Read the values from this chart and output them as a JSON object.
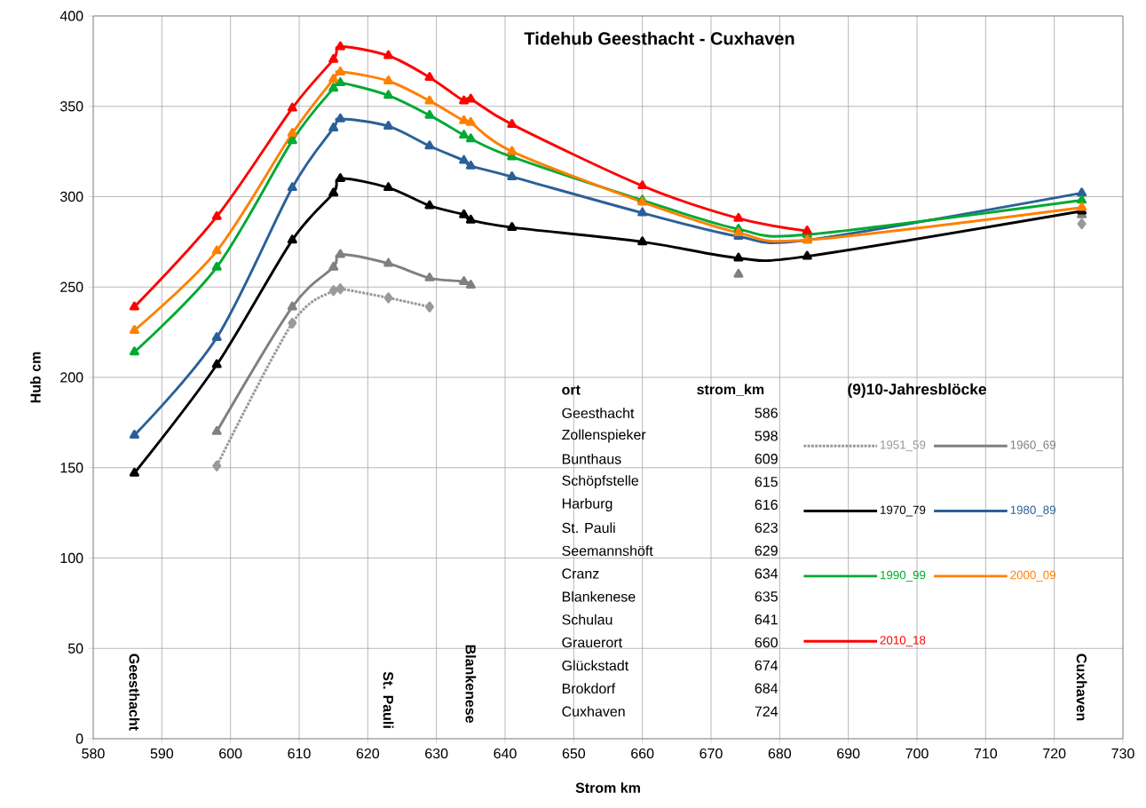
{
  "chart_data": {
    "type": "line",
    "title": "Tidehub Geesthacht - Cuxhaven",
    "xlabel": "Strom km",
    "ylabel": "Hub cm",
    "legend_title": "(9)10-Jahresblöcke",
    "x": [
      586,
      598,
      609,
      615,
      616,
      623,
      629,
      634,
      635,
      641,
      660,
      674,
      684,
      724
    ],
    "series": [
      {
        "name": "1951_59",
        "color": "#999999",
        "marker": "diamond",
        "line_style": "dotted",
        "values": [
          null,
          151,
          230,
          248,
          249,
          244,
          239,
          null,
          null,
          null,
          null,
          null,
          null,
          285
        ]
      },
      {
        "name": "1960_69",
        "color": "#808080",
        "marker": "triangle",
        "line_style": "solid",
        "values": [
          null,
          170,
          239,
          261,
          268,
          263,
          255,
          253,
          251,
          null,
          null,
          257,
          null,
          290
        ]
      },
      {
        "name": "1970_79",
        "color": "#000000",
        "marker": "triangle",
        "line_style": "solid",
        "values": [
          147,
          207,
          276,
          302,
          310,
          305,
          295,
          290,
          287,
          283,
          275,
          266,
          267,
          292
        ]
      },
      {
        "name": "1980_89",
        "color": "#2a6099",
        "marker": "triangle",
        "line_style": "solid",
        "values": [
          168,
          222,
          305,
          338,
          343,
          339,
          328,
          320,
          317,
          311,
          291,
          278,
          276,
          302
        ]
      },
      {
        "name": "1990_99",
        "color": "#00a933",
        "marker": "triangle",
        "line_style": "solid",
        "values": [
          214,
          261,
          331,
          360,
          363,
          356,
          345,
          334,
          332,
          322,
          298,
          282,
          279,
          298
        ]
      },
      {
        "name": "2000_09",
        "color": "#ff8000",
        "marker": "triangle",
        "line_style": "solid",
        "values": [
          226,
          270,
          335,
          365,
          369,
          364,
          353,
          342,
          341,
          325,
          297,
          280,
          276,
          294
        ]
      },
      {
        "name": "2010_18",
        "color": "#ff0000",
        "marker": "triangle",
        "line_style": "solid",
        "values": [
          239,
          289,
          349,
          376,
          383,
          378,
          366,
          353,
          354,
          340,
          306,
          288,
          281,
          null
        ]
      }
    ],
    "xlim": [
      580,
      730
    ],
    "xticks": [
      580,
      590,
      600,
      610,
      620,
      630,
      640,
      650,
      660,
      670,
      680,
      690,
      700,
      710,
      720,
      730
    ],
    "ylim": [
      0,
      400
    ],
    "yticks": [
      0,
      50,
      100,
      150,
      200,
      250,
      300,
      350,
      400
    ],
    "grid": true,
    "legend": "right",
    "annotations": [
      "Geesthacht",
      "St. Pauli",
      "Blankenese",
      "Cuxhaven",
      "ort",
      "strom_km",
      "Geesthacht",
      "586",
      "Zollenspieker",
      "598",
      "Bunthaus",
      "609",
      "Schöpfstelle",
      "615",
      "Harburg",
      "616",
      "St. Pauli",
      "623",
      "Seemannshöft",
      "629",
      "Cranz",
      "634",
      "Blankenese",
      "635",
      "Schulau",
      "641",
      "Grauerort",
      "660",
      "Glückstadt",
      "674",
      "Brokdorf",
      "684",
      "Cuxhaven",
      "724"
    ]
  }
}
